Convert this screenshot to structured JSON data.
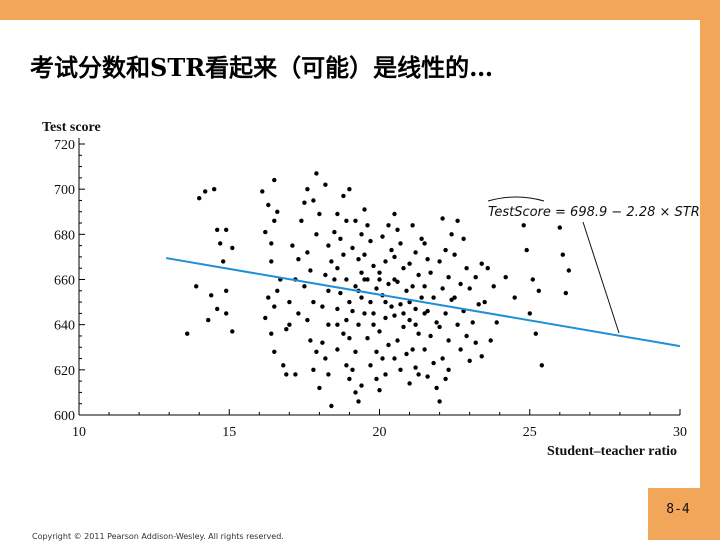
{
  "slide": {
    "title": "考试分数和STR看起来（可能）是线性的…",
    "copyright": "Copyright © 2011 Pearson Addison-Wesley. All rights reserved.",
    "page_number": "8-4"
  },
  "colors": {
    "frame": "#f2a65a",
    "regression_line": "#1f8fd6",
    "points": "#000000"
  },
  "chart_data": {
    "type": "scatter",
    "ylabel": "Test score",
    "xlabel": "Student–teacher ratio",
    "xlim": [
      10,
      30
    ],
    "ylim": [
      600,
      720
    ],
    "x_ticks": [
      "10",
      "15",
      "20",
      "25",
      "30"
    ],
    "y_ticks": [
      "600",
      "620",
      "640",
      "660",
      "680",
      "700",
      "720"
    ],
    "regression": {
      "label": "TestScore = 698.9 − 2.28 × STR",
      "intercept": 698.9,
      "slope": -2.28,
      "x_range": [
        12.9,
        30
      ]
    },
    "points": [
      [
        14.0,
        696
      ],
      [
        14.2,
        699
      ],
      [
        14.5,
        700
      ],
      [
        14.6,
        682
      ],
      [
        14.7,
        676
      ],
      [
        14.8,
        668
      ],
      [
        14.9,
        682
      ],
      [
        15.1,
        674
      ],
      [
        13.9,
        657
      ],
      [
        13.6,
        636
      ],
      [
        14.4,
        653
      ],
      [
        14.6,
        647
      ],
      [
        14.9,
        645
      ],
      [
        14.9,
        655
      ],
      [
        14.3,
        642
      ],
      [
        15.1,
        637
      ],
      [
        16.1,
        699
      ],
      [
        16.3,
        693
      ],
      [
        16.5,
        704
      ],
      [
        16.4,
        676
      ],
      [
        16.6,
        690
      ],
      [
        16.5,
        686
      ],
      [
        16.2,
        681
      ],
      [
        16.4,
        668
      ],
      [
        16.7,
        660
      ],
      [
        16.3,
        652
      ],
      [
        16.5,
        648
      ],
      [
        16.6,
        655
      ],
      [
        16.2,
        643
      ],
      [
        16.4,
        636
      ],
      [
        16.5,
        628
      ],
      [
        16.8,
        622
      ],
      [
        16.9,
        618
      ],
      [
        17.2,
        618
      ],
      [
        16.9,
        638
      ],
      [
        17.0,
        650
      ],
      [
        17.2,
        660
      ],
      [
        17.3,
        669
      ],
      [
        17.1,
        675
      ],
      [
        17.4,
        686
      ],
      [
        17.5,
        694
      ],
      [
        17.6,
        700
      ],
      [
        17.8,
        695
      ],
      [
        17.9,
        707
      ],
      [
        18.2,
        702
      ],
      [
        18.0,
        689
      ],
      [
        17.9,
        680
      ],
      [
        17.6,
        672
      ],
      [
        17.7,
        664
      ],
      [
        17.5,
        657
      ],
      [
        17.8,
        650
      ],
      [
        17.6,
        642
      ],
      [
        17.7,
        633
      ],
      [
        17.9,
        628
      ],
      [
        17.8,
        620
      ],
      [
        18.0,
        612
      ],
      [
        18.3,
        618
      ],
      [
        18.2,
        625
      ],
      [
        18.1,
        632
      ],
      [
        18.3,
        640
      ],
      [
        18.1,
        648
      ],
      [
        18.3,
        655
      ],
      [
        18.2,
        662
      ],
      [
        18.4,
        668
      ],
      [
        18.3,
        675
      ],
      [
        18.5,
        681
      ],
      [
        18.6,
        689
      ],
      [
        18.8,
        697
      ],
      [
        19.0,
        700
      ],
      [
        18.9,
        686
      ],
      [
        18.7,
        678
      ],
      [
        18.8,
        671
      ],
      [
        18.6,
        665
      ],
      [
        18.9,
        660
      ],
      [
        18.7,
        654
      ],
      [
        18.6,
        647
      ],
      [
        18.9,
        642
      ],
      [
        18.8,
        636
      ],
      [
        18.6,
        629
      ],
      [
        18.9,
        622
      ],
      [
        19.0,
        616
      ],
      [
        19.2,
        610
      ],
      [
        19.3,
        606
      ],
      [
        19.1,
        620
      ],
      [
        19.2,
        628
      ],
      [
        19.0,
        634
      ],
      [
        19.3,
        640
      ],
      [
        19.1,
        646
      ],
      [
        19.4,
        652
      ],
      [
        19.2,
        657
      ],
      [
        19.4,
        663
      ],
      [
        19.3,
        669
      ],
      [
        19.1,
        674
      ],
      [
        19.4,
        680
      ],
      [
        19.2,
        686
      ],
      [
        19.5,
        691
      ],
      [
        19.6,
        684
      ],
      [
        19.7,
        677
      ],
      [
        19.5,
        671
      ],
      [
        19.8,
        666
      ],
      [
        19.6,
        660
      ],
      [
        19.9,
        656
      ],
      [
        19.7,
        650
      ],
      [
        19.5,
        645
      ],
      [
        19.8,
        640
      ],
      [
        19.6,
        634
      ],
      [
        19.9,
        628
      ],
      [
        19.7,
        622
      ],
      [
        19.9,
        616
      ],
      [
        20.0,
        611
      ],
      [
        20.2,
        618
      ],
      [
        20.1,
        625
      ],
      [
        20.3,
        631
      ],
      [
        20.0,
        637
      ],
      [
        20.2,
        643
      ],
      [
        20.4,
        648
      ],
      [
        20.1,
        653
      ],
      [
        20.3,
        658
      ],
      [
        20.0,
        663
      ],
      [
        20.2,
        668
      ],
      [
        20.4,
        673
      ],
      [
        20.1,
        679
      ],
      [
        20.3,
        684
      ],
      [
        20.5,
        689
      ],
      [
        20.6,
        682
      ],
      [
        20.7,
        676
      ],
      [
        20.5,
        670
      ],
      [
        20.8,
        665
      ],
      [
        20.6,
        659
      ],
      [
        20.9,
        655
      ],
      [
        20.7,
        649
      ],
      [
        20.5,
        644
      ],
      [
        20.8,
        639
      ],
      [
        20.6,
        633
      ],
      [
        20.9,
        627
      ],
      [
        20.7,
        620
      ],
      [
        21.0,
        614
      ],
      [
        21.2,
        621
      ],
      [
        21.1,
        629
      ],
      [
        21.3,
        636
      ],
      [
        21.0,
        642
      ],
      [
        21.2,
        647
      ],
      [
        21.4,
        652
      ],
      [
        21.1,
        657
      ],
      [
        21.3,
        662
      ],
      [
        21.0,
        667
      ],
      [
        21.2,
        672
      ],
      [
        21.4,
        678
      ],
      [
        21.1,
        684
      ],
      [
        21.5,
        676
      ],
      [
        21.6,
        669
      ],
      [
        21.7,
        663
      ],
      [
        21.5,
        657
      ],
      [
        21.8,
        652
      ],
      [
        21.6,
        646
      ],
      [
        21.9,
        641
      ],
      [
        21.7,
        635
      ],
      [
        21.5,
        629
      ],
      [
        21.8,
        623
      ],
      [
        21.6,
        617
      ],
      [
        21.9,
        612
      ],
      [
        22.0,
        606
      ],
      [
        22.2,
        616
      ],
      [
        22.1,
        625
      ],
      [
        22.3,
        633
      ],
      [
        22.0,
        639
      ],
      [
        22.2,
        645
      ],
      [
        22.4,
        651
      ],
      [
        22.1,
        656
      ],
      [
        22.3,
        661
      ],
      [
        22.0,
        668
      ],
      [
        22.2,
        673
      ],
      [
        22.4,
        680
      ],
      [
        22.1,
        687
      ],
      [
        22.6,
        686
      ],
      [
        22.8,
        678
      ],
      [
        22.5,
        671
      ],
      [
        22.9,
        665
      ],
      [
        22.7,
        658
      ],
      [
        22.5,
        652
      ],
      [
        22.8,
        646
      ],
      [
        22.6,
        640
      ],
      [
        22.9,
        635
      ],
      [
        22.7,
        629
      ],
      [
        23.0,
        624
      ],
      [
        23.2,
        632
      ],
      [
        23.1,
        641
      ],
      [
        23.3,
        649
      ],
      [
        23.0,
        656
      ],
      [
        23.2,
        661
      ],
      [
        23.4,
        667
      ],
      [
        23.6,
        665
      ],
      [
        23.8,
        657
      ],
      [
        23.5,
        650
      ],
      [
        23.9,
        641
      ],
      [
        23.7,
        633
      ],
      [
        24.2,
        661
      ],
      [
        24.5,
        652
      ],
      [
        24.8,
        684
      ],
      [
        24.9,
        673
      ],
      [
        25.1,
        660
      ],
      [
        25.3,
        655
      ],
      [
        25.0,
        645
      ],
      [
        25.2,
        636
      ],
      [
        25.4,
        622
      ],
      [
        26.0,
        683
      ],
      [
        26.1,
        671
      ],
      [
        26.3,
        664
      ],
      [
        26.2,
        654
      ],
      [
        21.3,
        618
      ],
      [
        20.5,
        625
      ],
      [
        19.4,
        613
      ],
      [
        18.4,
        604
      ],
      [
        19.0,
        650
      ],
      [
        20.0,
        660
      ],
      [
        19.5,
        660
      ],
      [
        20.5,
        660
      ],
      [
        21.0,
        650
      ],
      [
        18.5,
        660
      ],
      [
        19.8,
        645
      ],
      [
        20.2,
        650
      ],
      [
        21.2,
        640
      ],
      [
        18.6,
        640
      ],
      [
        19.3,
        655
      ],
      [
        20.8,
        645
      ],
      [
        21.5,
        645
      ],
      [
        17.0,
        640
      ],
      [
        17.3,
        645
      ],
      [
        22.3,
        620
      ],
      [
        23.4,
        626
      ]
    ]
  }
}
